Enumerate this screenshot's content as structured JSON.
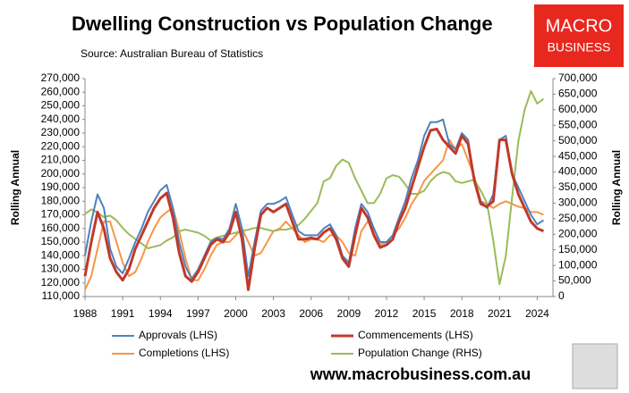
{
  "chart_data": {
    "type": "line",
    "title": "Dwelling Construction vs Population Change",
    "subtitle": "Source: Australian Bureau of Statistics",
    "y_label": "Rolling Annual",
    "y2_label": "Rolling Annual",
    "x": [
      1988,
      1988.5,
      1989,
      1989.5,
      1990,
      1990.5,
      1991,
      1991.5,
      1992,
      1992.5,
      1993,
      1993.5,
      1994,
      1994.5,
      1995,
      1995.5,
      1996,
      1996.5,
      1997,
      1997.5,
      1998,
      1998.5,
      1999,
      1999.5,
      2000,
      2000.5,
      2001,
      2001.5,
      2002,
      2002.5,
      2003,
      2003.5,
      2004,
      2004.5,
      2005,
      2005.5,
      2006,
      2006.5,
      2007,
      2007.5,
      2008,
      2008.5,
      2009,
      2009.5,
      2010,
      2010.5,
      2011,
      2011.5,
      2012,
      2012.5,
      2013,
      2013.5,
      2014,
      2014.5,
      2015,
      2015.5,
      2016,
      2016.5,
      2017,
      2017.5,
      2018,
      2018.5,
      2019,
      2019.5,
      2020,
      2020.5,
      2021,
      2021.5,
      2022,
      2022.5,
      2023,
      2023.5,
      2024,
      2024.5
    ],
    "xlim": [
      1988,
      2025.25
    ],
    "xticks": [
      1988,
      1991,
      1994,
      1997,
      2000,
      2003,
      2006,
      2009,
      2012,
      2015,
      2018,
      2021,
      2024
    ],
    "ylim": [
      110000,
      270000
    ],
    "yticks": [
      {
        "value": 110000,
        "label": "110,000"
      },
      {
        "value": 120000,
        "label": "120,000"
      },
      {
        "value": 130000,
        "label": "130,000"
      },
      {
        "value": 140000,
        "label": "140,000"
      },
      {
        "value": 150000,
        "label": "150,000"
      },
      {
        "value": 160000,
        "label": "160,000"
      },
      {
        "value": 170000,
        "label": "170,000"
      },
      {
        "value": 180000,
        "label": "180,000"
      },
      {
        "value": 190000,
        "label": "190,000"
      },
      {
        "value": 200000,
        "label": "200,000"
      },
      {
        "value": 210000,
        "label": "210,000"
      },
      {
        "value": 220000,
        "label": "220,000"
      },
      {
        "value": 230000,
        "label": "230,000"
      },
      {
        "value": 240000,
        "label": "240,000"
      },
      {
        "value": 250000,
        "label": "250,000"
      },
      {
        "value": 260000,
        "label": "260,000"
      },
      {
        "value": 270000,
        "label": "270,000"
      }
    ],
    "y2lim": [
      0,
      700000
    ],
    "y2ticks": [
      0,
      {
        "value": 50000,
        "label": "50,000"
      },
      {
        "value": 100000,
        "label": "100,000"
      },
      {
        "value": 150000,
        "label": "150,000"
      },
      {
        "value": 200000,
        "label": "200,000"
      },
      {
        "value": 250000,
        "label": "250,000"
      },
      {
        "value": 300000,
        "label": "300,000"
      },
      {
        "value": 350000,
        "label": "350,000"
      },
      {
        "value": 400000,
        "label": "400,000"
      },
      {
        "value": 450000,
        "label": "450,000"
      },
      {
        "value": 500000,
        "label": "500,000"
      },
      {
        "value": 550000,
        "label": "550,000"
      },
      {
        "value": 600000,
        "label": "600,000"
      },
      {
        "value": 650000,
        "label": "650,000"
      },
      {
        "value": 700000,
        "label": "700,000"
      }
    ],
    "grid": false,
    "series": [
      {
        "name": "Approvals (LHS)",
        "color": "#4f81bd",
        "values": [
          140000,
          165000,
          185000,
          175000,
          145000,
          132000,
          127000,
          138000,
          150000,
          160000,
          172000,
          180000,
          188000,
          192000,
          175000,
          150000,
          132000,
          123000,
          130000,
          140000,
          150000,
          153000,
          152000,
          160000,
          178000,
          160000,
          125000,
          150000,
          173000,
          178000,
          178000,
          180000,
          183000,
          170000,
          158000,
          155000,
          155000,
          155000,
          160000,
          163000,
          155000,
          140000,
          135000,
          160000,
          178000,
          172000,
          160000,
          150000,
          150000,
          155000,
          168000,
          180000,
          197000,
          210000,
          228000,
          238000,
          238000,
          240000,
          222000,
          218000,
          230000,
          225000,
          195000,
          180000,
          175000,
          185000,
          225000,
          228000,
          200000,
          190000,
          180000,
          170000,
          163000,
          166000
        ]
      },
      {
        "name": "Commencements (LHS)",
        "color": "#c0392b",
        "values": [
          125000,
          150000,
          172000,
          160000,
          138000,
          128000,
          122000,
          130000,
          145000,
          155000,
          165000,
          175000,
          182000,
          186000,
          168000,
          142000,
          125000,
          121000,
          128000,
          138000,
          148000,
          152000,
          150000,
          157000,
          172000,
          152000,
          115000,
          145000,
          170000,
          175000,
          172000,
          175000,
          178000,
          165000,
          152000,
          152000,
          153000,
          152000,
          157000,
          160000,
          152000,
          138000,
          132000,
          155000,
          175000,
          168000,
          155000,
          146000,
          148000,
          152000,
          165000,
          175000,
          190000,
          205000,
          220000,
          232000,
          233000,
          225000,
          220000,
          215000,
          228000,
          222000,
          195000,
          178000,
          176000,
          180000,
          225000,
          225000,
          200000,
          185000,
          175000,
          165000,
          160000,
          158000
        ]
      },
      {
        "name": "Completions (LHS)",
        "color": "#f79646",
        "values": [
          115000,
          125000,
          145000,
          165000,
          165000,
          150000,
          135000,
          125000,
          128000,
          138000,
          150000,
          160000,
          168000,
          172000,
          175000,
          158000,
          138000,
          122000,
          122000,
          130000,
          140000,
          148000,
          150000,
          150000,
          155000,
          160000,
          150000,
          140000,
          142000,
          150000,
          158000,
          160000,
          165000,
          160000,
          155000,
          150000,
          152000,
          152000,
          150000,
          155000,
          155000,
          150000,
          142000,
          140000,
          158000,
          165000,
          160000,
          148000,
          150000,
          155000,
          160000,
          168000,
          178000,
          185000,
          195000,
          200000,
          205000,
          210000,
          225000,
          218000,
          222000,
          210000,
          198000,
          180000,
          178000,
          175000,
          178000,
          180000,
          178000,
          176000,
          175000,
          172000,
          172000,
          170000
        ]
      },
      {
        "name": "Population Change (RHS)",
        "color": "#9bbb59",
        "axis": "y2",
        "values": [
          265000,
          280000,
          270000,
          255000,
          260000,
          245000,
          220000,
          200000,
          185000,
          170000,
          155000,
          160000,
          165000,
          180000,
          190000,
          210000,
          215000,
          210000,
          205000,
          195000,
          180000,
          190000,
          195000,
          200000,
          205000,
          210000,
          215000,
          220000,
          220000,
          215000,
          210000,
          215000,
          215000,
          220000,
          230000,
          250000,
          275000,
          300000,
          370000,
          380000,
          420000,
          440000,
          430000,
          380000,
          340000,
          300000,
          300000,
          330000,
          380000,
          390000,
          385000,
          360000,
          330000,
          330000,
          340000,
          370000,
          390000,
          400000,
          395000,
          370000,
          365000,
          370000,
          375000,
          340000,
          300000,
          180000,
          40000,
          130000,
          320000,
          500000,
          600000,
          660000,
          620000,
          635000
        ]
      }
    ]
  },
  "branding": {
    "logo_top": "MACRO",
    "logo_bottom": "BUSINESS",
    "url": "www.macrobusiness.com.au"
  }
}
